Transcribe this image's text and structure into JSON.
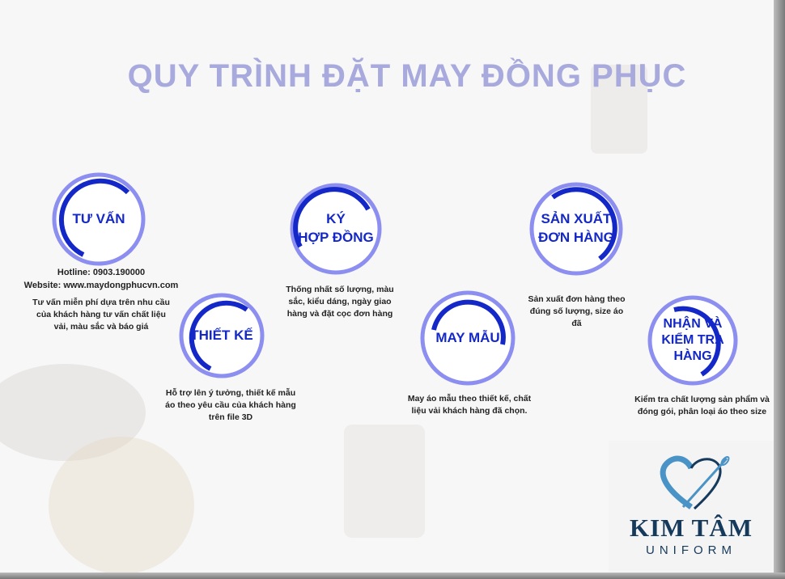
{
  "title": "QUY TRÌNH ĐẶT MAY ĐỒNG PHỤC",
  "colors": {
    "accent": "#1428c8",
    "ring": "#8c8ef0",
    "title": "#a8a9dc",
    "logo_dark": "#163a5c",
    "logo_light": "#4a93c6"
  },
  "contact": {
    "hotline": "Hotline: 0903.190000",
    "website": "Website: www.maydongphucvn.com"
  },
  "steps": [
    {
      "label": "TƯ VẤN",
      "desc": [
        "Tư vấn miễn phí dựa trên nhu cầu",
        "của khách hàng tư vấn chất liệu",
        "vải, màu sắc và báo giá"
      ]
    },
    {
      "label_lines": [
        "KÝ",
        "HỢP ĐỒNG"
      ],
      "desc": [
        "Thống nhất số lượng, màu",
        "sắc, kiểu dáng, ngày giao",
        "hàng và đặt cọc đơn hàng"
      ]
    },
    {
      "label": "THIẾT KẾ",
      "desc": [
        "Hỗ trợ lên ý tưởng, thiết kế mẫu",
        "áo theo yêu cầu của khách hàng",
        "trên file 3D"
      ]
    },
    {
      "label": "MAY MẪU",
      "desc": [
        "May áo mẫu theo thiết kế, chất",
        "liệu vải khách hàng đã chọn."
      ]
    },
    {
      "label_lines": [
        "SẢN XUẤT",
        "ĐƠN HÀNG"
      ],
      "desc": [
        "Sản xuất đơn hàng theo",
        "đúng số lượng, size áo đã"
      ]
    },
    {
      "label_lines": [
        "NHẬN VÀ",
        "KIỂM TRA",
        "HÀNG"
      ],
      "desc": [
        "Kiểm tra chất lượng sản phẩm và",
        "đóng gói, phân loại áo theo size"
      ]
    }
  ],
  "logo": {
    "name": "KIM TÂM",
    "tagline": "UNIFORM"
  }
}
